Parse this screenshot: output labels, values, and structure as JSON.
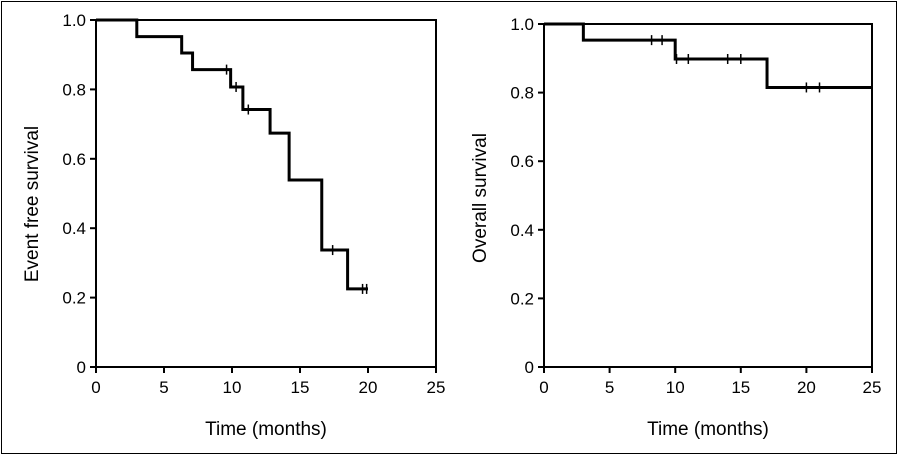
{
  "chart_data": [
    {
      "type": "line",
      "subtype": "kaplan-meier",
      "title": "",
      "xlabel": "Time (months)",
      "ylabel": "Event free survival",
      "xlim": [
        0,
        25
      ],
      "ylim": [
        0,
        1.0
      ],
      "xticks": [
        "0",
        "5",
        "10",
        "15",
        "20",
        "25"
      ],
      "yticks": [
        "0",
        "0.2",
        "0.4",
        "0.6",
        "0.8",
        "1.0"
      ],
      "grid": false,
      "series": [
        {
          "steps": [
            [
              0,
              1.0
            ],
            [
              3.0,
              0.952
            ],
            [
              6.3,
              0.905
            ],
            [
              7.1,
              0.857
            ],
            [
              9.9,
              0.807
            ],
            [
              10.8,
              0.742
            ],
            [
              12.8,
              0.674
            ],
            [
              14.2,
              0.539
            ],
            [
              16.6,
              0.337
            ],
            [
              18.5,
              0.225
            ],
            [
              20.0,
              0.225
            ]
          ],
          "censored": [
            [
              9.6,
              0.857
            ],
            [
              10.3,
              0.807
            ],
            [
              11.2,
              0.742
            ],
            [
              17.4,
              0.337
            ],
            [
              19.6,
              0.225
            ],
            [
              19.9,
              0.225
            ]
          ]
        }
      ]
    },
    {
      "type": "line",
      "subtype": "kaplan-meier",
      "title": "",
      "xlabel": "Time (months)",
      "ylabel": "Overall survival",
      "xlim": [
        0,
        25
      ],
      "ylim": [
        0,
        1.0
      ],
      "xticks": [
        "0",
        "5",
        "10",
        "15",
        "20",
        "25"
      ],
      "yticks": [
        "0",
        "0.2",
        "0.4",
        "0.6",
        "0.8",
        "1.0"
      ],
      "grid": false,
      "series": [
        {
          "steps": [
            [
              0,
              1.0
            ],
            [
              3.0,
              0.953
            ],
            [
              10.0,
              0.898
            ],
            [
              17.0,
              0.815
            ],
            [
              25.0,
              0.815
            ]
          ],
          "censored": [
            [
              8.2,
              0.953
            ],
            [
              9.0,
              0.953
            ],
            [
              10.1,
              0.898
            ],
            [
              11.0,
              0.898
            ],
            [
              14.0,
              0.898
            ],
            [
              15.0,
              0.898
            ],
            [
              20.0,
              0.815
            ],
            [
              21.0,
              0.815
            ]
          ]
        }
      ]
    }
  ]
}
